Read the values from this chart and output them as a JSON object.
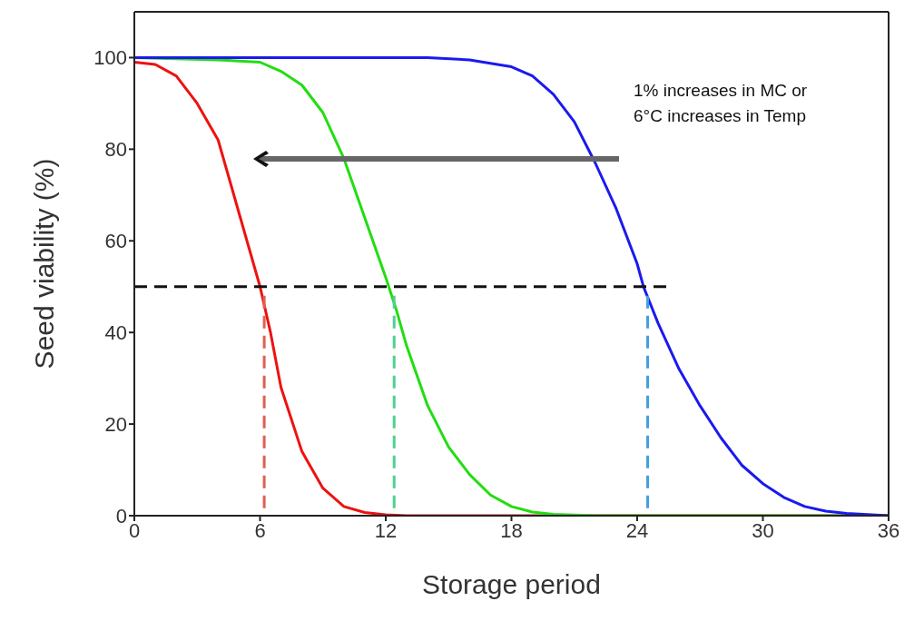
{
  "chart_data": {
    "type": "line",
    "xlabel": "Storage period",
    "ylabel": "Seed viability (%)",
    "xlim": [
      0,
      36
    ],
    "xticks": [
      0,
      6,
      12,
      18,
      24,
      30,
      36
    ],
    "ylim": [
      0,
      110
    ],
    "yticks": [
      0,
      20,
      40,
      60,
      80,
      100
    ],
    "grid": false,
    "marker": "none",
    "annotations": [
      "1% increases in MC or",
      "6°C increases in Temp"
    ],
    "series": [
      {
        "color": "#ee1111",
        "line_style": "solid",
        "x": [
          0,
          1,
          2,
          3,
          4,
          5,
          6,
          6.5,
          7,
          8,
          9,
          10,
          11,
          12,
          13,
          20,
          36
        ],
        "values": [
          99,
          98.5,
          96,
          90,
          82,
          66,
          50,
          40,
          28,
          14,
          6,
          2,
          0.7,
          0.2,
          0,
          0,
          0
        ]
      },
      {
        "color": "#22dd11",
        "line_style": "solid",
        "x": [
          0,
          4,
          6,
          7,
          8,
          9,
          10,
          11,
          12,
          12.5,
          13,
          14,
          15,
          16,
          17,
          18,
          19,
          20,
          22,
          36
        ],
        "values": [
          100,
          99.5,
          99,
          97,
          94,
          88,
          78,
          65,
          52,
          45,
          37,
          24,
          15,
          9,
          4.5,
          2,
          0.8,
          0.3,
          0,
          0
        ]
      },
      {
        "color": "#1a1aee",
        "line_style": "solid",
        "x": [
          0,
          14,
          16,
          18,
          19,
          20,
          21,
          22,
          23,
          24,
          24.3,
          25,
          26,
          27,
          28,
          29,
          30,
          31,
          32,
          33,
          34,
          36
        ],
        "values": [
          100,
          100,
          99.5,
          98,
          96,
          92,
          86,
          77,
          67,
          55,
          50,
          42,
          32,
          24,
          17,
          11,
          7,
          4,
          2,
          1,
          0.5,
          0
        ]
      },
      {
        "color": "#111111",
        "line_style": "dashed",
        "x": [
          0,
          25.4
        ],
        "values": [
          50,
          50
        ]
      },
      {
        "color": "#e06050",
        "line_style": "dashed",
        "x": [
          6.2,
          6.2
        ],
        "values": [
          48,
          0
        ]
      },
      {
        "color": "#50d090",
        "line_style": "dashed",
        "x": [
          12.4,
          12.4
        ],
        "values": [
          48,
          0
        ]
      },
      {
        "color": "#40a0e0",
        "line_style": "dashed",
        "x": [
          24.5,
          24.5
        ],
        "values": [
          48,
          0
        ]
      }
    ]
  }
}
